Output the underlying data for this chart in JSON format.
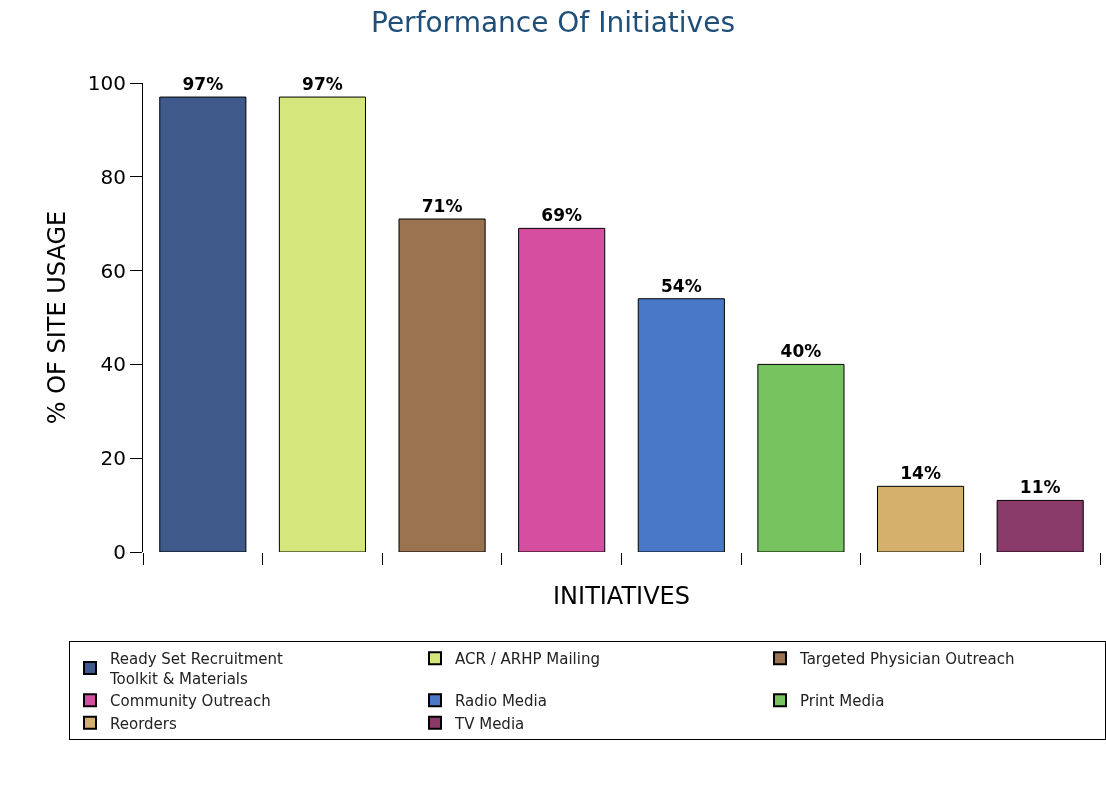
{
  "chart_data": {
    "type": "bar",
    "title": "Performance Of Initiatives",
    "xlabel": "INITIATIVES",
    "ylabel": "% OF SITE USAGE",
    "categories": [
      null,
      null,
      null,
      null,
      null,
      null,
      null,
      null
    ],
    "values": [
      97,
      97,
      71,
      69,
      54,
      40,
      14,
      11
    ],
    "value_labels": [
      "97%",
      "97%",
      "71%",
      "69%",
      "54%",
      "40%",
      "14%",
      "11%"
    ],
    "colors": [
      "#3f5a8a",
      "#d5e77c",
      "#9a7350",
      "#d64ea0",
      "#4a78c8",
      "#77c35f",
      "#d4b06c",
      "#8a3a68"
    ],
    "annotations": [
      "Ready Set Recruitment\nToolkit & Materials",
      "ACR / ARHP Mailing",
      "Targeted Physician Outreach",
      "Community Outreach",
      "Radio Media",
      "Print Media",
      "Reorders",
      "TV Media"
    ],
    "ylim": [
      0,
      100
    ],
    "yticks": [
      0,
      20,
      40,
      60,
      80,
      100
    ],
    "grid": false,
    "tick_labels": "y"
  }
}
